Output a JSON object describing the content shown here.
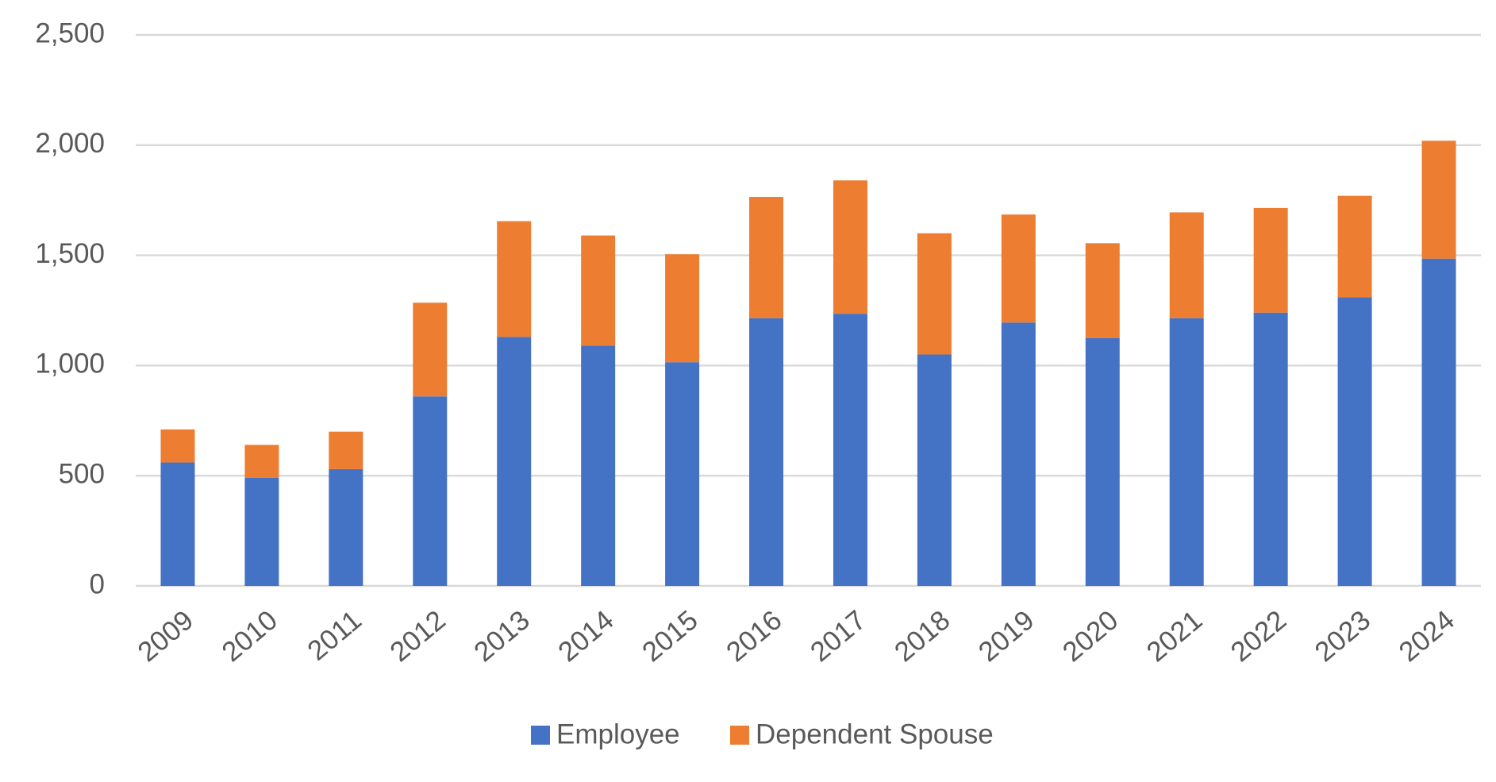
{
  "chart_data": {
    "type": "stacked_bar",
    "categories": [
      "2009",
      "2010",
      "2011",
      "2012",
      "2013",
      "2014",
      "2015",
      "2016",
      "2017",
      "2018",
      "2019",
      "2020",
      "2021",
      "2022",
      "2023",
      "2024"
    ],
    "series": [
      {
        "name": "Employee",
        "color": "#4472c4",
        "values": [
          560,
          490,
          530,
          860,
          1130,
          1090,
          1015,
          1215,
          1235,
          1050,
          1195,
          1125,
          1215,
          1240,
          1310,
          1485
        ]
      },
      {
        "name": "Dependent Spouse",
        "color": "#ed7d31",
        "values": [
          150,
          150,
          170,
          425,
          525,
          500,
          490,
          550,
          605,
          550,
          490,
          430,
          480,
          475,
          460,
          535
        ]
      }
    ],
    "ylim": [
      0,
      2500
    ],
    "yticks": [
      0,
      500,
      {
        "value": 1000,
        "label": "1,000"
      },
      {
        "value": 1500,
        "label": "1,500"
      },
      {
        "value": 2000,
        "label": "2,000"
      },
      {
        "value": 2500,
        "label": "2,500"
      }
    ],
    "grid": true,
    "legend": "bottom"
  }
}
